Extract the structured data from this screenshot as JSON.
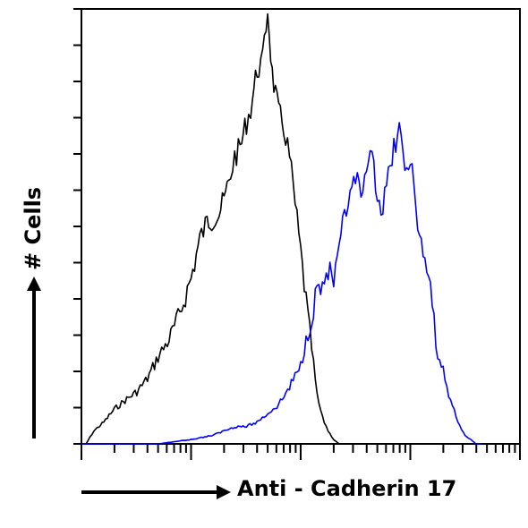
{
  "chart_data": {
    "type": "line",
    "xlabel": "Anti - Cadherin 17",
    "ylabel": "# Cells",
    "xscale": "log",
    "xlim": [
      1,
      10000
    ],
    "ylim": [
      0,
      100
    ],
    "grid": false,
    "legend": "none",
    "series": [
      {
        "color": "#000000",
        "points": [
          [
            1.0,
            40
          ],
          [
            1.0,
            0
          ],
          [
            1.1,
            0
          ],
          [
            1.3,
            3
          ],
          [
            1.6,
            5
          ],
          [
            2.0,
            8
          ],
          [
            2.5,
            10
          ],
          [
            3.2,
            12
          ],
          [
            4.0,
            15
          ],
          [
            5.0,
            20
          ],
          [
            6.3,
            24
          ],
          [
            7.9,
            30
          ],
          [
            10,
            38
          ],
          [
            12,
            47
          ],
          [
            14,
            51
          ],
          [
            16,
            52
          ],
          [
            18,
            53
          ],
          [
            20,
            56
          ],
          [
            22,
            60
          ],
          [
            25,
            66
          ],
          [
            28,
            68
          ],
          [
            32,
            74
          ],
          [
            35,
            77
          ],
          [
            40,
            86
          ],
          [
            45,
            88
          ],
          [
            50,
            100
          ],
          [
            55,
            85
          ],
          [
            63,
            76
          ],
          [
            70,
            73
          ],
          [
            79,
            66
          ],
          [
            89,
            55
          ],
          [
            100,
            44
          ],
          [
            112,
            33
          ],
          [
            126,
            22
          ],
          [
            141,
            11
          ],
          [
            158,
            6
          ],
          [
            178,
            3
          ],
          [
            200,
            1
          ],
          [
            224,
            0
          ],
          [
            251,
            0
          ]
        ]
      },
      {
        "color": "#0000ff",
        "points": [
          [
            1.0,
            0
          ],
          [
            2.0,
            0
          ],
          [
            5.0,
            0
          ],
          [
            10,
            1
          ],
          [
            16,
            2
          ],
          [
            20,
            3
          ],
          [
            25,
            4
          ],
          [
            32,
            4
          ],
          [
            40,
            5
          ],
          [
            50,
            7
          ],
          [
            63,
            9
          ],
          [
            79,
            13
          ],
          [
            100,
            18
          ],
          [
            112,
            24
          ],
          [
            126,
            29
          ],
          [
            141,
            36
          ],
          [
            158,
            36
          ],
          [
            178,
            40
          ],
          [
            200,
            37
          ],
          [
            224,
            43
          ],
          [
            251,
            53
          ],
          [
            282,
            56
          ],
          [
            316,
            61
          ],
          [
            355,
            57
          ],
          [
            398,
            60
          ],
          [
            447,
            68
          ],
          [
            501,
            57
          ],
          [
            562,
            54
          ],
          [
            631,
            61
          ],
          [
            708,
            68
          ],
          [
            794,
            73
          ],
          [
            891,
            61
          ],
          [
            1000,
            67
          ],
          [
            1122,
            53
          ],
          [
            1259,
            46
          ],
          [
            1413,
            40
          ],
          [
            1585,
            32
          ],
          [
            1778,
            20
          ],
          [
            1995,
            17
          ],
          [
            2239,
            11
          ],
          [
            2512,
            8
          ],
          [
            2818,
            4
          ],
          [
            3162,
            2
          ],
          [
            3548,
            1
          ],
          [
            3981,
            0
          ],
          [
            4467,
            0
          ]
        ]
      }
    ]
  }
}
